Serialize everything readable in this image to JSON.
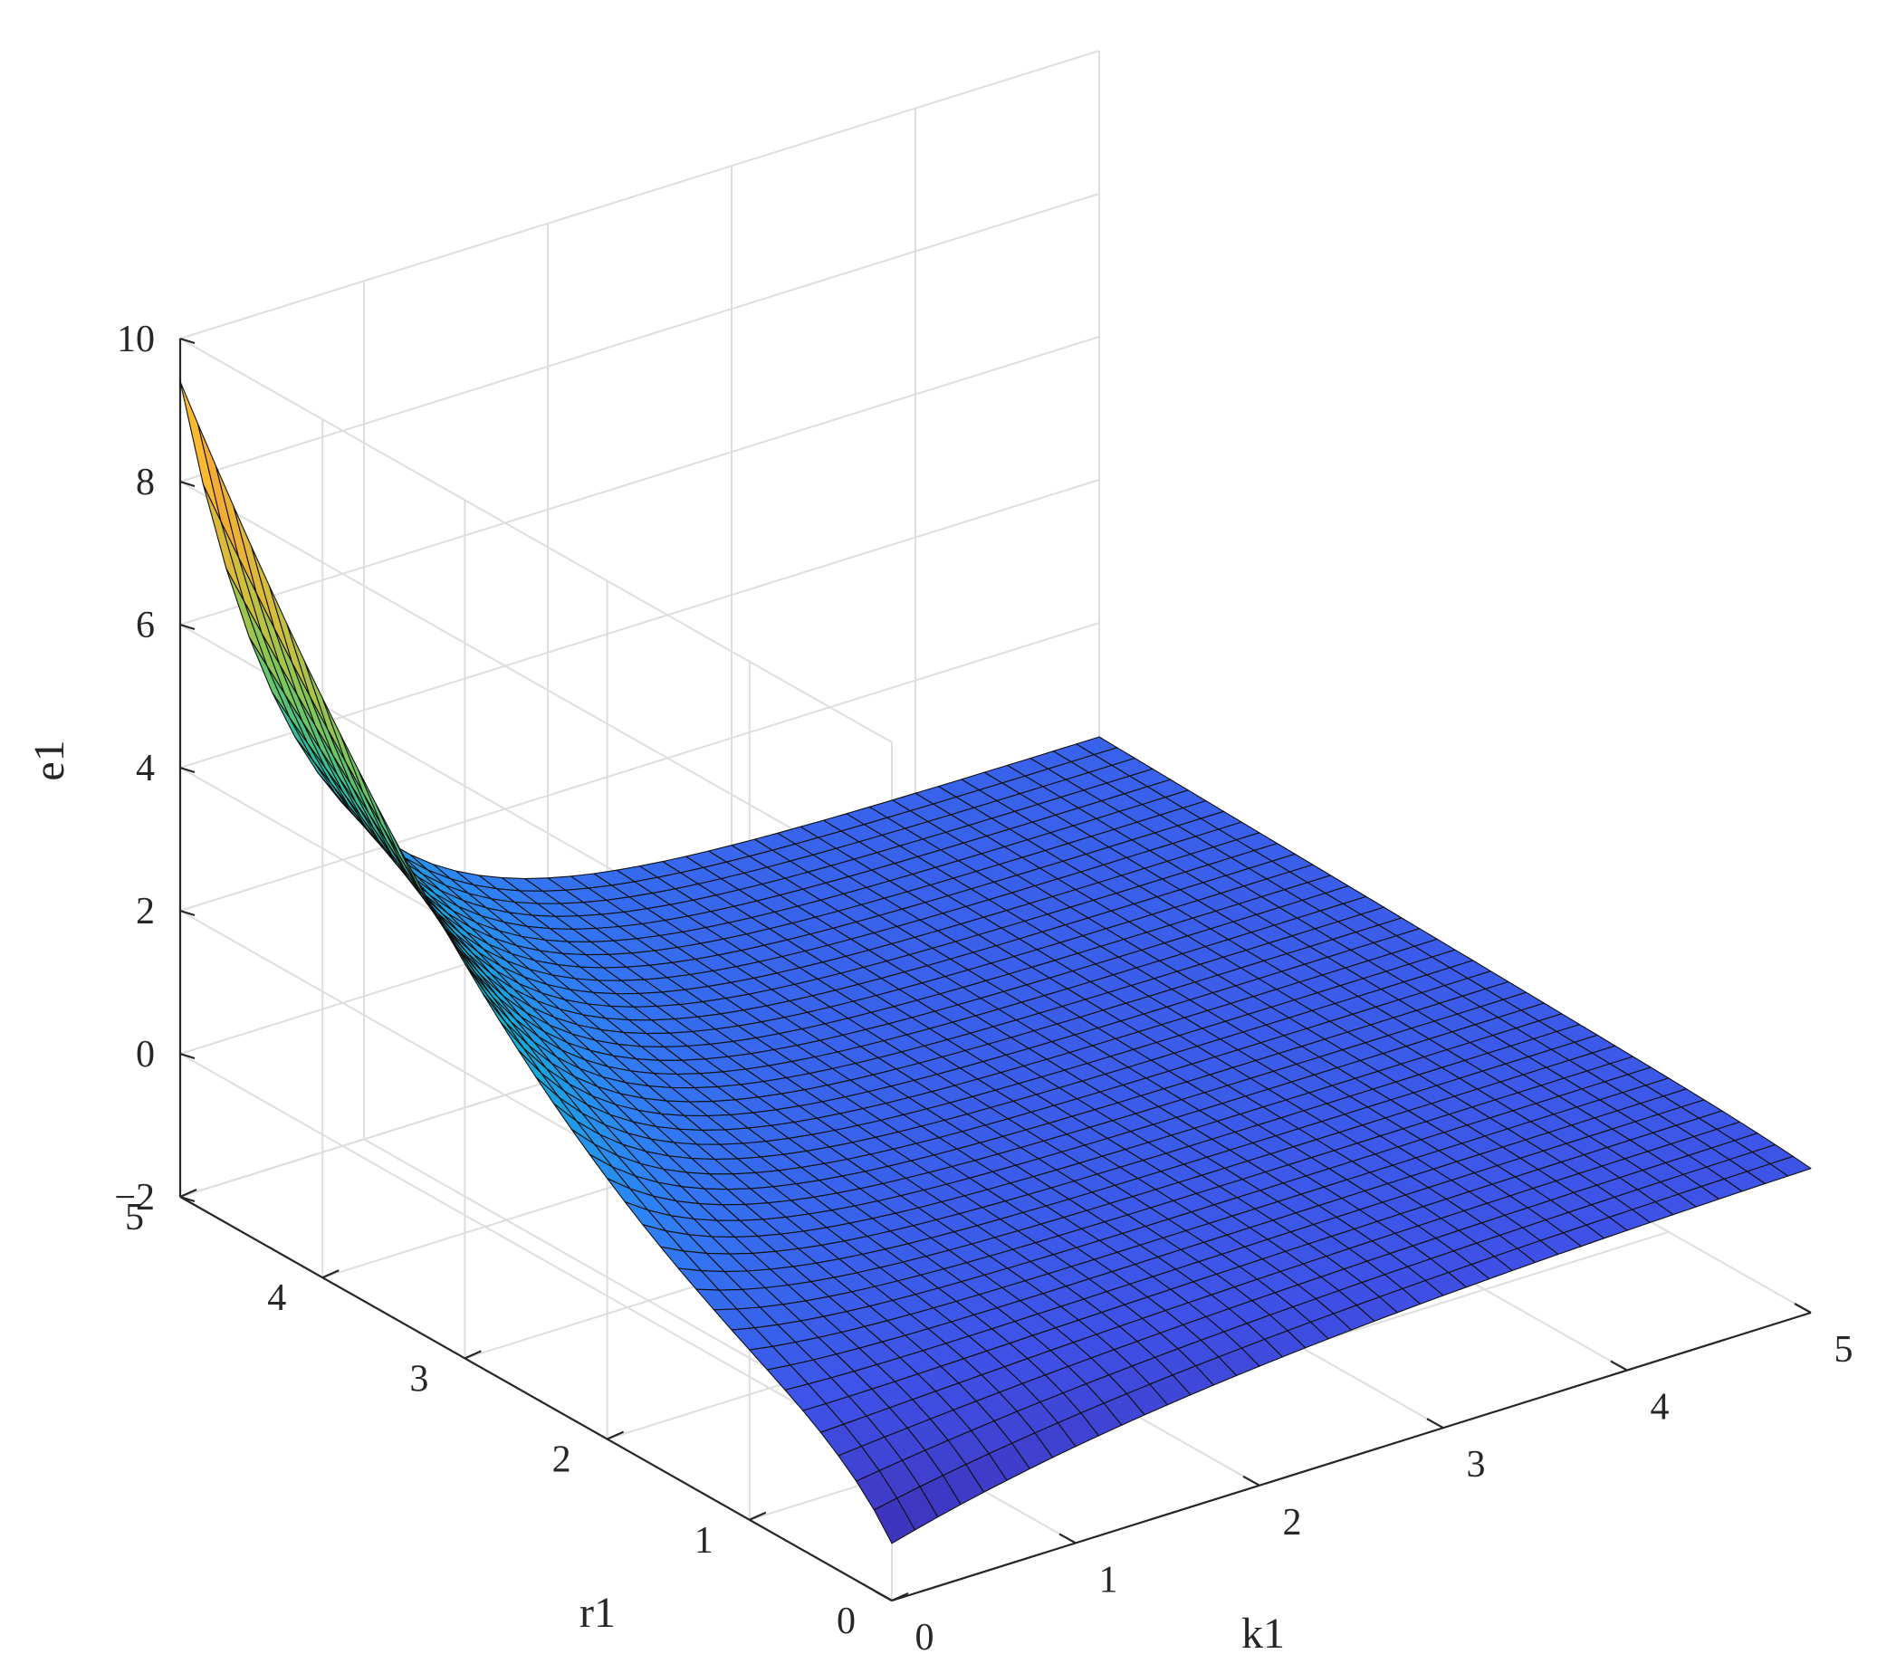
{
  "chart_data": {
    "type": "surface",
    "title": "",
    "xlabel": "k1",
    "ylabel": "r1",
    "zlabel": "e1",
    "xlim": [
      0,
      5
    ],
    "ylim": [
      0,
      5
    ],
    "zlim": [
      -2,
      10
    ],
    "xticks": [
      "0",
      "1",
      "2",
      "3",
      "4",
      "5"
    ],
    "yticks": [
      "0",
      "1",
      "2",
      "3",
      "4",
      "5"
    ],
    "zticks": [
      "−2",
      "0",
      "2",
      "4",
      "6",
      "8",
      "10"
    ],
    "grid": true,
    "colormap": "parula",
    "colors": {
      "surface_low": "#3d2fd6",
      "surface_mid": "#2a80f2",
      "surface_cyan": "#12b8c8",
      "surface_green": "#49c26c",
      "surface_high": "#f2a63c",
      "edge": "#101010",
      "grid": "#dedede"
    },
    "mesh": {
      "x": [
        0,
        0.125,
        0.25,
        0.375,
        0.5,
        0.625,
        0.75,
        0.875,
        1,
        1.125,
        1.25,
        1.375,
        1.5,
        1.625,
        1.75,
        1.875,
        2,
        2.125,
        2.25,
        2.375,
        2.5,
        2.625,
        2.75,
        2.875,
        3,
        3.125,
        3.25,
        3.375,
        3.5,
        3.625,
        3.75,
        3.875,
        4,
        4.125,
        4.25,
        4.375,
        4.5,
        4.625,
        4.75,
        4.875,
        5
      ],
      "y": [
        0,
        0.125,
        0.25,
        0.375,
        0.5,
        0.625,
        0.75,
        0.875,
        1,
        1.125,
        1.25,
        1.375,
        1.5,
        1.625,
        1.75,
        1.875,
        2,
        2.125,
        2.25,
        2.375,
        2.5,
        2.625,
        2.75,
        2.875,
        3,
        3.125,
        3.25,
        3.375,
        3.5,
        3.625,
        3.75,
        3.875,
        4,
        4.125,
        4.25,
        4.375,
        4.5,
        4.625,
        4.75,
        4.875,
        5
      ],
      "z_corners": {
        "k1=0,r1=0": -1.5,
        "k1=0,r1=5": 8.8,
        "k1=5,r1=0": 0.1,
        "k1=5,r1=5": 0.4
      }
    }
  }
}
